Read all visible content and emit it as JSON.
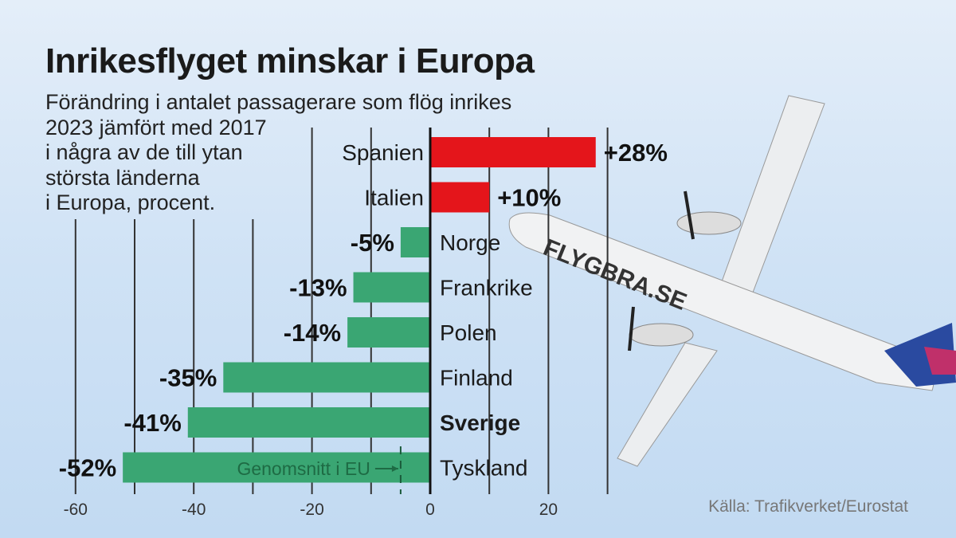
{
  "title": "Inrikesflyget minskar i Europa",
  "subtitle_lines": [
    "Förändring i antalet passagerare som flög inrikes",
    "2023 jämfört med 2017",
    "i några av de till ytan",
    "största länderna",
    "i Europa, procent."
  ],
  "source": "Källa: Trafikverket/Eurostat",
  "colors": {
    "positive": "#e4151b",
    "negative": "#3aa673",
    "axis": "#111111",
    "grid": "#333333"
  },
  "chart_data": {
    "type": "bar",
    "orientation": "horizontal",
    "categories": [
      "Spanien",
      "Italien",
      "Norge",
      "Frankrike",
      "Polen",
      "Finland",
      "Sverige",
      "Tyskland"
    ],
    "values": [
      28,
      10,
      -5,
      -13,
      -14,
      -35,
      -41,
      -52
    ],
    "value_labels": [
      "+28%",
      "+10%",
      "-5%",
      "-13%",
      "-14%",
      "-35%",
      "-41%",
      "-52%"
    ],
    "highlighted_category": "Sverige",
    "xlim": [
      -60,
      30
    ],
    "x_ticks": [
      -60,
      -40,
      -20,
      0,
      20
    ],
    "x_tick_labels": [
      "-60",
      "-40",
      "-20",
      "0",
      "20"
    ],
    "grid": true,
    "reference_line": {
      "value": -5,
      "label": "Genomsnitt i EU"
    }
  }
}
